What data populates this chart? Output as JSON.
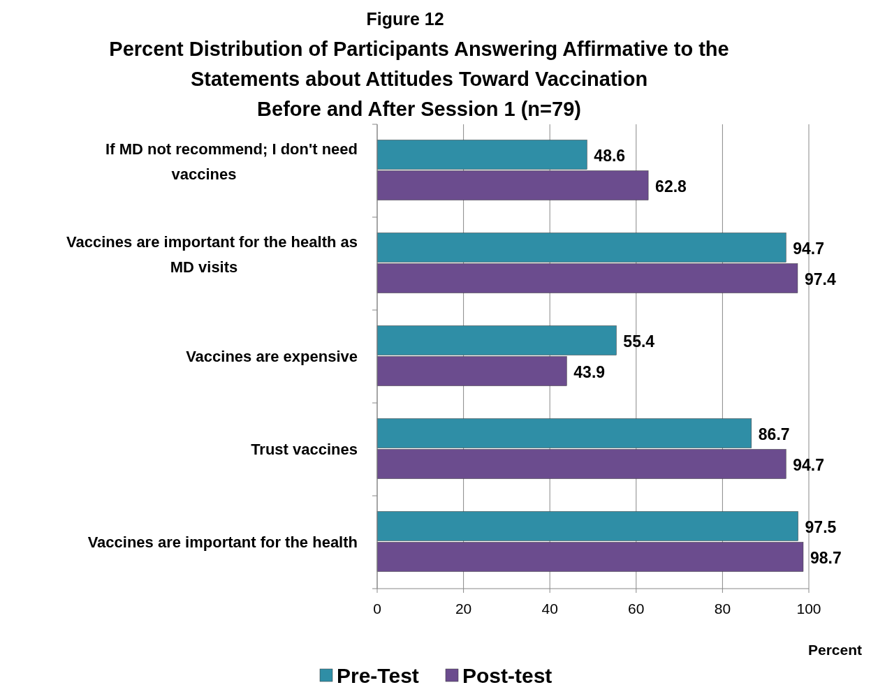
{
  "chart_data": {
    "type": "bar",
    "orientation": "horizontal",
    "title": "Figure 12",
    "subtitle": "Percent Distribution of Participants Answering Affirmative to the\nStatements about Attitudes Toward Vaccination\nBefore and After Session 1 (n=79)",
    "xlabel": "Percent",
    "categories": [
      "If MD not  recommend; I don't need vaccines",
      "Vaccines are important for the health as MD visits",
      "Vaccines are expensive",
      "Trust vaccines",
      "Vaccines are important for the health"
    ],
    "series": [
      {
        "name": "Pre-Test",
        "color": "#2f8ea6",
        "values": [
          48.6,
          94.7,
          55.4,
          86.7,
          97.5
        ]
      },
      {
        "name": "Post-test",
        "color": "#6b4c8e",
        "values": [
          62.8,
          97.4,
          43.9,
          94.7,
          98.7
        ]
      }
    ],
    "xlim": [
      0,
      100
    ],
    "xticks": [
      0,
      20,
      40,
      60,
      80,
      100
    ],
    "grid": "x",
    "legend": "bottom",
    "data_labels": true
  }
}
